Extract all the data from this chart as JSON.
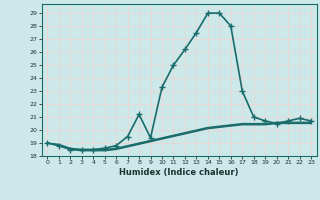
{
  "xlabel": "Humidex (Indice chaleur)",
  "ylabel": "",
  "background_color": "#cce8e8",
  "plot_bg_color": "#cce8e8",
  "grid_color": "#e8d8d8",
  "line_color": "#1a6b6b",
  "xlim": [
    -0.5,
    23.5
  ],
  "ylim": [
    18.0,
    29.7
  ],
  "yticks": [
    18,
    19,
    20,
    21,
    22,
    23,
    24,
    25,
    26,
    27,
    28,
    29
  ],
  "xticks": [
    0,
    1,
    2,
    3,
    4,
    5,
    6,
    7,
    8,
    9,
    10,
    11,
    12,
    13,
    14,
    15,
    16,
    17,
    18,
    19,
    20,
    21,
    22,
    23
  ],
  "series": [
    {
      "x": [
        0,
        1,
        2,
        3,
        4,
        5,
        6,
        7,
        8,
        9,
        10,
        11,
        12,
        13,
        14,
        15,
        16,
        17,
        18,
        19,
        20,
        21,
        22,
        23
      ],
      "y": [
        19.0,
        18.8,
        18.5,
        18.5,
        18.5,
        18.6,
        18.8,
        19.5,
        21.2,
        19.4,
        23.3,
        25.0,
        26.2,
        27.5,
        29.0,
        29.0,
        28.0,
        23.0,
        21.0,
        20.7,
        20.5,
        20.7,
        20.9,
        20.7
      ],
      "marker": "+",
      "linewidth": 1.2,
      "markersize": 4
    },
    {
      "x": [
        0,
        1,
        2,
        3,
        4,
        5,
        6,
        7,
        8,
        9,
        10,
        11,
        12,
        13,
        14,
        15,
        16,
        17,
        18,
        19,
        20,
        21,
        22,
        23
      ],
      "y": [
        19.0,
        18.8,
        18.5,
        18.4,
        18.4,
        18.4,
        18.5,
        18.7,
        18.9,
        19.1,
        19.3,
        19.5,
        19.7,
        19.9,
        20.1,
        20.2,
        20.3,
        20.4,
        20.4,
        20.4,
        20.5,
        20.5,
        20.5,
        20.5
      ],
      "marker": "",
      "linewidth": 0.9,
      "markersize": 0
    },
    {
      "x": [
        0,
        1,
        2,
        3,
        4,
        5,
        6,
        7,
        8,
        9,
        10,
        11,
        12,
        13,
        14,
        15,
        16,
        17,
        18,
        19,
        20,
        21,
        22,
        23
      ],
      "y": [
        19.0,
        18.85,
        18.55,
        18.45,
        18.45,
        18.45,
        18.55,
        18.75,
        18.95,
        19.15,
        19.35,
        19.55,
        19.75,
        19.95,
        20.15,
        20.25,
        20.35,
        20.45,
        20.45,
        20.45,
        20.55,
        20.55,
        20.55,
        20.55
      ],
      "marker": "",
      "linewidth": 0.9,
      "markersize": 0
    },
    {
      "x": [
        0,
        1,
        2,
        3,
        4,
        5,
        6,
        7,
        8,
        9,
        10,
        11,
        12,
        13,
        14,
        15,
        16,
        17,
        18,
        19,
        20,
        21,
        22,
        23
      ],
      "y": [
        19.0,
        18.9,
        18.6,
        18.5,
        18.5,
        18.5,
        18.6,
        18.8,
        19.0,
        19.2,
        19.4,
        19.6,
        19.8,
        20.0,
        20.2,
        20.3,
        20.4,
        20.5,
        20.5,
        20.5,
        20.6,
        20.6,
        20.6,
        20.6
      ],
      "marker": "",
      "linewidth": 0.9,
      "markersize": 0
    }
  ]
}
